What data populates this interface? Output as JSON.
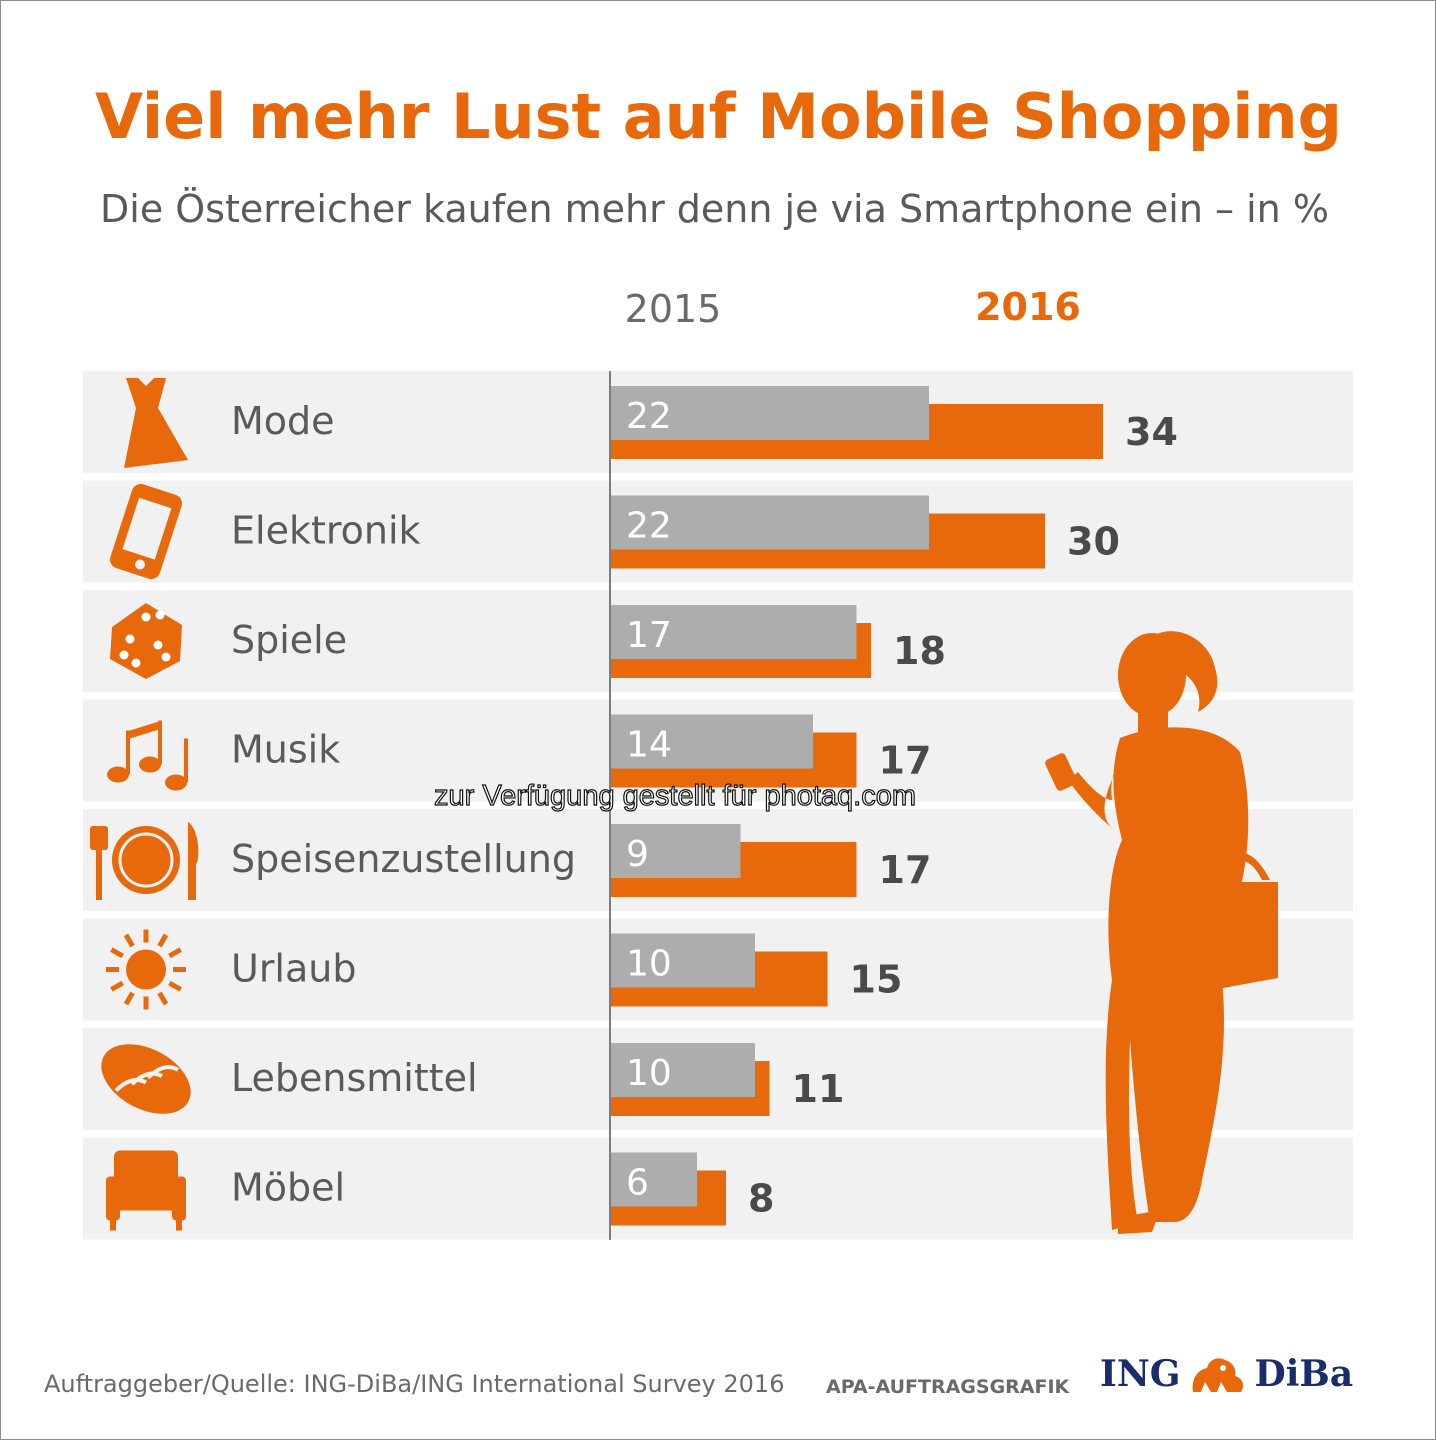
{
  "title": "Viel mehr Lust auf Mobile Shopping",
  "subtitle": "Die Österreicher kaufen mehr denn je via Smartphone ein – in %",
  "source": "Auftraggeber/Quelle: ING-DiBa/ING International Survey 2016",
  "credit": "APA-AUFTRAGSGRAFIK",
  "watermark": "zur Verfügung gestellt für photaq.com",
  "logo": {
    "left": "ING",
    "right": "DiBa",
    "icon": "lion-icon"
  },
  "colors": {
    "accent": "#e8690b",
    "gray_bar": "#adadad",
    "text": "#5a5a5a",
    "row_bg": "#f1f1f1",
    "brand_blue": "#1a2c6b"
  },
  "decoration": {
    "figure": "woman-with-smartphone-silhouette"
  },
  "chart_data": {
    "type": "bar",
    "orientation": "horizontal",
    "categories": [
      "Mode",
      "Elektronik",
      "Spiele",
      "Musik",
      "Speisenzustellung",
      "Urlaub",
      "Lebensmittel",
      "Möbel"
    ],
    "icons": [
      "dress-icon",
      "smartphone-icon",
      "dice-icon",
      "music-notes-icon",
      "cutlery-plate-icon",
      "sun-icon",
      "bread-icon",
      "armchair-icon"
    ],
    "series": [
      {
        "name": "2015",
        "color": "#adadad",
        "values": [
          22,
          22,
          17,
          14,
          9,
          10,
          10,
          6
        ]
      },
      {
        "name": "2016",
        "color": "#e8690b",
        "values": [
          34,
          30,
          18,
          17,
          17,
          15,
          11,
          8
        ]
      }
    ],
    "xlim": [
      0,
      50
    ],
    "grid": false
  }
}
